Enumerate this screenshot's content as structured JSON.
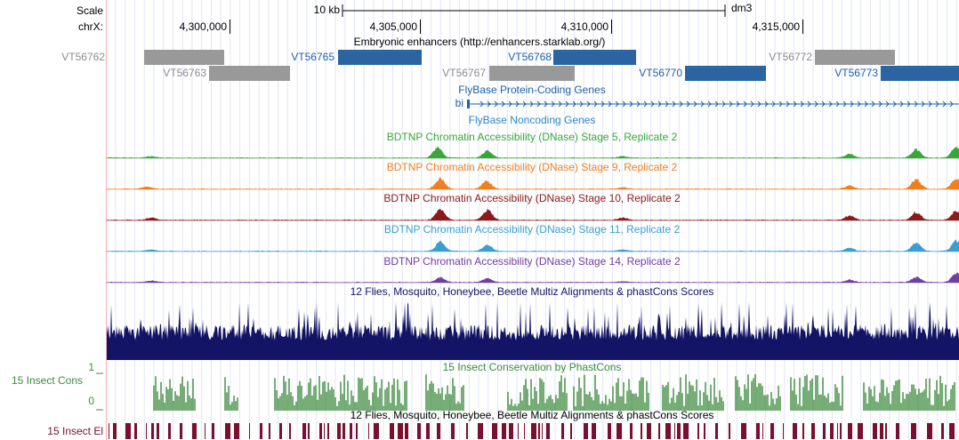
{
  "ruler": {
    "scale_label": "Scale",
    "chrom_label": "chrX:",
    "scale_bar": "10 kb",
    "assembly": "dm3",
    "positions": [
      "4,300,000",
      "4,305,000",
      "4,310,000",
      "4,315,000"
    ]
  },
  "tracks": {
    "enhancers": {
      "title": "Embryonic enhancers (http://enhancers.starklab.org/)",
      "items": [
        "VT56762",
        "VT56765",
        "VT56768",
        "VT56772",
        "VT56763",
        "VT56767",
        "VT56770",
        "VT56773"
      ]
    },
    "protein_genes": {
      "title": "FlyBase Protein-Coding Genes",
      "gene": "bi"
    },
    "noncoding": {
      "title": "FlyBase Noncoding Genes"
    },
    "dnase": [
      "BDTNP Chromatin Accessibility (DNase) Stage 5, Replicate 2",
      "BDTNP Chromatin Accessibility (DNase) Stage 9, Replicate 2",
      "BDTNP Chromatin Accessibility (DNase) Stage 10, Replicate 2",
      "BDTNP Chromatin Accessibility (DNase) Stage 11, Replicate 2",
      "BDTNP Chromatin Accessibility (DNase) Stage 14, Replicate 2"
    ],
    "multiz": {
      "title": "12 Flies, Mosquito, Honeybee, Beetle Multiz Alignments & phastCons Scores"
    },
    "phastcons": {
      "title": "15 Insect Conservation by PhastCons",
      "left_label": "15 Insect Cons",
      "ymax": "1",
      "ymin": "0"
    },
    "elements": {
      "title": "12 Flies, Mosquito, Honeybee, Beetle Multiz Alignments & phastCons Scores",
      "left_label": "15 Insect El"
    }
  }
}
